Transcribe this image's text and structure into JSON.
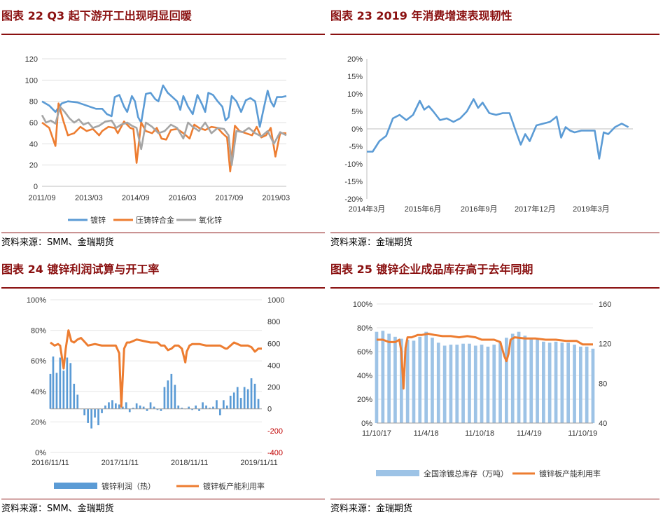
{
  "panels": [
    {
      "title": "图表 22 Q3 起下游开工出现明显回暖",
      "source": "资料来源：SMM、金瑞期货"
    },
    {
      "title": "图表 23 2019 年消费增速表现韧性",
      "source": "资料来源：金瑞期货"
    },
    {
      "title": "图表 24 镀锌利润试算与开工率",
      "source": "资料来源：SMM、金瑞期货"
    },
    {
      "title": "图表 25 镀锌企业成品库存高于去年同期",
      "source": "资料来源：金瑞期货"
    }
  ],
  "chart_data": [
    {
      "type": "line",
      "title": "",
      "ylim": [
        0,
        120
      ],
      "yticks": [
        "0",
        "20",
        "40",
        "60",
        "80",
        "100",
        "120"
      ],
      "xlim": [
        2011.67,
        2019.5
      ],
      "xticks": [
        "2011/09",
        "2013/03",
        "2014/09",
        "2016/03",
        "2017/09",
        "2019/03"
      ],
      "xtick_pos": [
        2011.67,
        2013.17,
        2014.67,
        2016.17,
        2017.67,
        2019.17
      ],
      "legend": "bottom",
      "series": [
        {
          "name": "镀锌",
          "color": "#5b9bd5",
          "x": [
            2011.67,
            2011.9,
            2012.1,
            2012.3,
            2012.5,
            2012.8,
            2013.0,
            2013.2,
            2013.4,
            2013.6,
            2013.75,
            2013.9,
            2014.0,
            2014.15,
            2014.3,
            2014.4,
            2014.55,
            2014.65,
            2014.75,
            2014.85,
            2015.0,
            2015.15,
            2015.3,
            2015.4,
            2015.55,
            2015.7,
            2015.85,
            2016.0,
            2016.1,
            2016.2,
            2016.35,
            2016.5,
            2016.65,
            2016.8,
            2016.9,
            2017.0,
            2017.15,
            2017.3,
            2017.45,
            2017.55,
            2017.65,
            2017.75,
            2017.9,
            2018.05,
            2018.2,
            2018.35,
            2018.5,
            2018.65,
            2018.75,
            2018.9,
            2019.0,
            2019.1,
            2019.2,
            2019.35,
            2019.5
          ],
          "values": [
            80,
            76,
            70,
            78,
            80,
            79,
            77,
            75,
            73,
            73,
            68,
            66,
            84,
            86,
            75,
            70,
            85,
            80,
            65,
            60,
            87,
            88,
            82,
            80,
            95,
            88,
            84,
            80,
            72,
            85,
            75,
            68,
            86,
            77,
            70,
            88,
            86,
            80,
            75,
            62,
            65,
            85,
            80,
            70,
            81,
            83,
            80,
            56,
            70,
            90,
            80,
            75,
            84,
            84,
            85
          ]
        },
        {
          "name": "压铸锌合金",
          "color": "#ed7d31",
          "x": [
            2011.67,
            2011.9,
            2012.1,
            2012.2,
            2012.35,
            2012.5,
            2012.7,
            2012.9,
            2013.1,
            2013.3,
            2013.5,
            2013.6,
            2013.8,
            2014.0,
            2014.1,
            2014.3,
            2014.5,
            2014.6,
            2014.7,
            2014.85,
            2015.0,
            2015.2,
            2015.35,
            2015.5,
            2015.65,
            2015.8,
            2016.0,
            2016.2,
            2016.4,
            2016.55,
            2016.7,
            2016.9,
            2017.1,
            2017.3,
            2017.45,
            2017.6,
            2017.7,
            2017.85,
            2018.0,
            2018.2,
            2018.4,
            2018.55,
            2018.7,
            2018.85,
            2019.0,
            2019.15,
            2019.3,
            2019.5
          ],
          "values": [
            60,
            55,
            38,
            78,
            62,
            48,
            50,
            56,
            52,
            54,
            48,
            52,
            56,
            55,
            50,
            61,
            55,
            54,
            22,
            60,
            52,
            50,
            55,
            45,
            44,
            53,
            54,
            50,
            45,
            58,
            55,
            53,
            56,
            55,
            50,
            46,
            14,
            57,
            52,
            50,
            48,
            56,
            46,
            48,
            55,
            28,
            50,
            50
          ]
        },
        {
          "name": "氧化锌",
          "color": "#a5a5a5",
          "x": [
            2011.67,
            2011.8,
            2011.95,
            2012.1,
            2012.25,
            2012.4,
            2012.55,
            2012.7,
            2012.85,
            2013.0,
            2013.15,
            2013.3,
            2013.5,
            2013.7,
            2013.9,
            2014.05,
            2014.2,
            2014.4,
            2014.55,
            2014.7,
            2014.85,
            2015.0,
            2015.2,
            2015.4,
            2015.6,
            2015.8,
            2016.0,
            2016.2,
            2016.35,
            2016.5,
            2016.7,
            2016.9,
            2017.1,
            2017.3,
            2017.5,
            2017.65,
            2017.75,
            2017.9,
            2018.1,
            2018.3,
            2018.5,
            2018.7,
            2018.9,
            2019.1,
            2019.3,
            2019.5
          ],
          "values": [
            67,
            60,
            62,
            59,
            75,
            70,
            64,
            60,
            63,
            58,
            60,
            55,
            57,
            61,
            62,
            55,
            58,
            60,
            57,
            55,
            35,
            60,
            56,
            50,
            52,
            58,
            55,
            45,
            60,
            56,
            52,
            60,
            50,
            55,
            54,
            48,
            20,
            52,
            51,
            55,
            50,
            47,
            52,
            40,
            51,
            48
          ]
        }
      ]
    },
    {
      "type": "line",
      "title": "",
      "ylim": [
        -20,
        20
      ],
      "yticks": [
        "-20%",
        "-15%",
        "-10%",
        "-5%",
        "0%",
        "5%",
        "10%",
        "15%",
        "20%"
      ],
      "xlim": [
        2014.17,
        2020.1
      ],
      "xticks": [
        "2014年3月",
        "2015年6月",
        "2016年9月",
        "2017年12月",
        "2019年3月"
      ],
      "xtick_pos": [
        2014.17,
        2015.42,
        2016.67,
        2017.92,
        2019.17
      ],
      "series": [
        {
          "name": "",
          "color": "#5b9bd5",
          "x": [
            2014.17,
            2014.3,
            2014.45,
            2014.6,
            2014.75,
            2014.9,
            2015.05,
            2015.2,
            2015.35,
            2015.45,
            2015.55,
            2015.65,
            2015.8,
            2015.95,
            2016.1,
            2016.25,
            2016.4,
            2016.55,
            2016.65,
            2016.75,
            2016.9,
            2017.05,
            2017.2,
            2017.35,
            2017.5,
            2017.6,
            2017.7,
            2017.8,
            2017.95,
            2018.1,
            2018.25,
            2018.4,
            2018.5,
            2018.6,
            2018.7,
            2018.8,
            2018.95,
            2019.1,
            2019.25,
            2019.35,
            2019.45,
            2019.55,
            2019.7,
            2019.85,
            2020.0
          ],
          "values": [
            -6.5,
            -6.5,
            -3.5,
            -2,
            3,
            4,
            2.5,
            4,
            8,
            5.5,
            6.5,
            5,
            2.5,
            3,
            2,
            3,
            5,
            8.5,
            6,
            7.5,
            4.5,
            4,
            4.5,
            4.5,
            -1,
            -4.5,
            -1.5,
            -3.5,
            1,
            1.5,
            2,
            3.5,
            -2.5,
            0.5,
            -0.5,
            -1,
            -0.5,
            -0.5,
            -0.5,
            -8.5,
            -1,
            -1.5,
            0.5,
            1.5,
            0.5
          ]
        }
      ]
    },
    {
      "type": "bar+line",
      "title": "",
      "ylim_left": [
        0,
        100
      ],
      "yticks_left": [
        "0%",
        "20%",
        "40%",
        "60%",
        "80%",
        "100%"
      ],
      "ylim_right": [
        -400,
        1000
      ],
      "yticks_right": [
        "-400",
        "-200",
        "0",
        "200",
        "400",
        "600",
        "800",
        "1000"
      ],
      "negative_tick_color": "#c00000",
      "xlim": [
        2016.86,
        2019.9
      ],
      "xticks": [
        "2016/11/11",
        "2017/11/11",
        "2018/11/11",
        "2019/11/11"
      ],
      "xtick_pos": [
        2016.86,
        2017.86,
        2018.86,
        2019.86
      ],
      "legend": "bottom",
      "bar_series": {
        "name": "镀锌利润（热）",
        "color": "#5b9bd5",
        "x": [
          2016.86,
          2016.9,
          2016.95,
          2017.0,
          2017.05,
          2017.1,
          2017.15,
          2017.2,
          2017.25,
          2017.3,
          2017.35,
          2017.4,
          2017.45,
          2017.5,
          2017.55,
          2017.6,
          2017.65,
          2017.7,
          2017.75,
          2017.8,
          2017.85,
          2017.9,
          2017.95,
          2018.0,
          2018.05,
          2018.1,
          2018.15,
          2018.2,
          2018.25,
          2018.3,
          2018.35,
          2018.4,
          2018.45,
          2018.5,
          2018.55,
          2018.6,
          2018.65,
          2018.7,
          2018.75,
          2018.8,
          2018.85,
          2018.9,
          2018.95,
          2019.0,
          2019.05,
          2019.1,
          2019.15,
          2019.2,
          2019.25,
          2019.3,
          2019.35,
          2019.4,
          2019.45,
          2019.5,
          2019.55,
          2019.6,
          2019.65,
          2019.7,
          2019.75,
          2019.8,
          2019.85
        ],
        "values": [
          320,
          480,
          330,
          470,
          350,
          470,
          420,
          230,
          130,
          0,
          -60,
          -130,
          -180,
          -80,
          -150,
          -40,
          30,
          60,
          80,
          50,
          40,
          20,
          60,
          -30,
          10,
          50,
          30,
          20,
          -20,
          60,
          20,
          -10,
          -20,
          200,
          260,
          320,
          220,
          30,
          10,
          0,
          20,
          -10,
          30,
          -20,
          60,
          30,
          10,
          20,
          80,
          -60,
          80,
          30,
          120,
          150,
          200,
          100,
          200,
          180,
          280,
          230,
          90
        ]
      },
      "line_series": {
        "name": "镀锌板产能利用率",
        "color": "#ed7d31",
        "x": [
          2016.86,
          2016.92,
          2016.97,
          2017.0,
          2017.05,
          2017.08,
          2017.12,
          2017.16,
          2017.2,
          2017.25,
          2017.3,
          2017.36,
          2017.4,
          2017.5,
          2017.6,
          2017.7,
          2017.8,
          2017.85,
          2017.88,
          2017.92,
          2017.96,
          2018.0,
          2018.1,
          2018.2,
          2018.3,
          2018.4,
          2018.45,
          2018.5,
          2018.55,
          2018.6,
          2018.65,
          2018.7,
          2018.75,
          2018.8,
          2018.82,
          2018.86,
          2018.9,
          2019.0,
          2019.1,
          2019.2,
          2019.3,
          2019.38,
          2019.4,
          2019.45,
          2019.5,
          2019.6,
          2019.7,
          2019.75,
          2019.8,
          2019.85,
          2019.9
        ],
        "values": [
          72,
          70,
          71,
          70,
          55,
          68,
          80,
          73,
          72,
          74,
          75,
          72,
          70,
          71,
          70,
          70,
          70,
          65,
          30,
          68,
          72,
          72,
          74,
          73,
          72,
          72,
          70,
          70,
          67,
          68,
          70,
          70,
          68,
          59,
          66,
          70,
          71,
          71,
          70,
          70,
          70,
          68,
          68,
          70,
          72,
          70,
          70,
          69,
          66,
          68,
          68
        ]
      }
    },
    {
      "type": "bar+line",
      "title": "",
      "ylim_left": [
        0,
        100
      ],
      "yticks_left": [
        "0%",
        "20%",
        "40%",
        "60%",
        "80%",
        "100%"
      ],
      "ylim_right": [
        40,
        160
      ],
      "yticks_right": [
        "40",
        "80",
        "120",
        "160"
      ],
      "xlim": [
        2017.86,
        2019.96
      ],
      "xticks": [
        "11/10/17",
        "11/4/18",
        "11/10/18",
        "11/4/19",
        "11/10/19"
      ],
      "xtick_pos": [
        2017.86,
        2018.34,
        2018.86,
        2019.34,
        2019.86
      ],
      "legend": "bottom",
      "bar_series": {
        "name": "全国涂镀总库存（万吨）",
        "color": "#9dc3e6",
        "x": [
          2017.86,
          2017.92,
          2017.98,
          2018.04,
          2018.1,
          2018.16,
          2018.22,
          2018.28,
          2018.34,
          2018.4,
          2018.46,
          2018.52,
          2018.58,
          2018.64,
          2018.7,
          2018.76,
          2018.82,
          2018.88,
          2018.94,
          2019.0,
          2019.06,
          2019.12,
          2019.18,
          2019.24,
          2019.3,
          2019.36,
          2019.42,
          2019.48,
          2019.54,
          2019.6,
          2019.66,
          2019.72,
          2019.78,
          2019.84,
          2019.9,
          2019.96
        ],
        "values": [
          132,
          133,
          130,
          127,
          125,
          124,
          123,
          127,
          132,
          126,
          121,
          118,
          119,
          119,
          120,
          120,
          118,
          119,
          117,
          119,
          121,
          126,
          130,
          132,
          128,
          125,
          124,
          122,
          121,
          122,
          121,
          121,
          119,
          117,
          117,
          115
        ]
      },
      "line_series": {
        "name": "镀锌板产能利用率",
        "color": "#ed7d31",
        "x": [
          2017.86,
          2017.92,
          2017.98,
          2018.04,
          2018.08,
          2018.1,
          2018.12,
          2018.14,
          2018.16,
          2018.2,
          2018.26,
          2018.3,
          2018.36,
          2018.42,
          2018.5,
          2018.58,
          2018.66,
          2018.74,
          2018.82,
          2018.88,
          2018.94,
          2019.0,
          2019.06,
          2019.1,
          2019.12,
          2019.14,
          2019.16,
          2019.2,
          2019.3,
          2019.4,
          2019.5,
          2019.6,
          2019.7,
          2019.8,
          2019.86,
          2019.9,
          2019.96
        ],
        "values": [
          70,
          70,
          68,
          68,
          70,
          60,
          29,
          63,
          72,
          72,
          74,
          74,
          75,
          74,
          73,
          73,
          72,
          73,
          72,
          70,
          70,
          70,
          68,
          56,
          52,
          58,
          70,
          72,
          71,
          71,
          70,
          70,
          69,
          69,
          66,
          66,
          66
        ]
      }
    }
  ]
}
